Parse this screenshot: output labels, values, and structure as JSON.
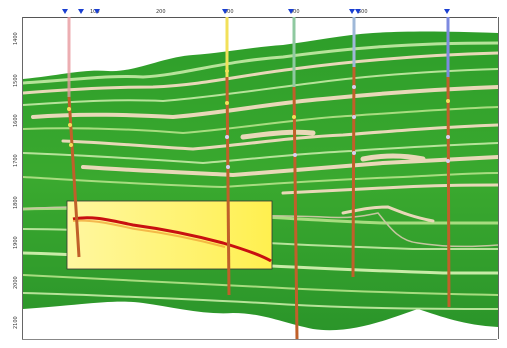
{
  "window": {
    "title": "",
    "background": "#ffffff"
  },
  "top_axis": {
    "ticks": [
      "100",
      "200",
      "300",
      "400",
      "500"
    ]
  },
  "left_axis": {
    "ticks": [
      "1400",
      "1500",
      "1600",
      "1700",
      "1800",
      "1900",
      "2000",
      "2100"
    ]
  },
  "wells": [
    {
      "id": "well-1",
      "color": "#e89aa0"
    },
    {
      "id": "well-2",
      "color": "#f2e05a"
    },
    {
      "id": "well-3",
      "color": "#8fc9a0"
    },
    {
      "id": "well-4",
      "color": "#9fb8d8"
    },
    {
      "id": "well-5",
      "color": "#7d8ae0"
    }
  ],
  "colors": {
    "seismic_dark_green": "#1f8f1f",
    "seismic_mid_green": "#4cb82c",
    "seismic_light_green": "#a8dc80",
    "seismic_beige": "#e8d8b8",
    "well_track": "#c0602a",
    "highlight_yellow": "#fff47a",
    "highlight_red": "#c81010",
    "marker_blue": "#1a3fd1"
  },
  "overlay": {
    "name": "attribute window",
    "fill": "#fff47a"
  }
}
